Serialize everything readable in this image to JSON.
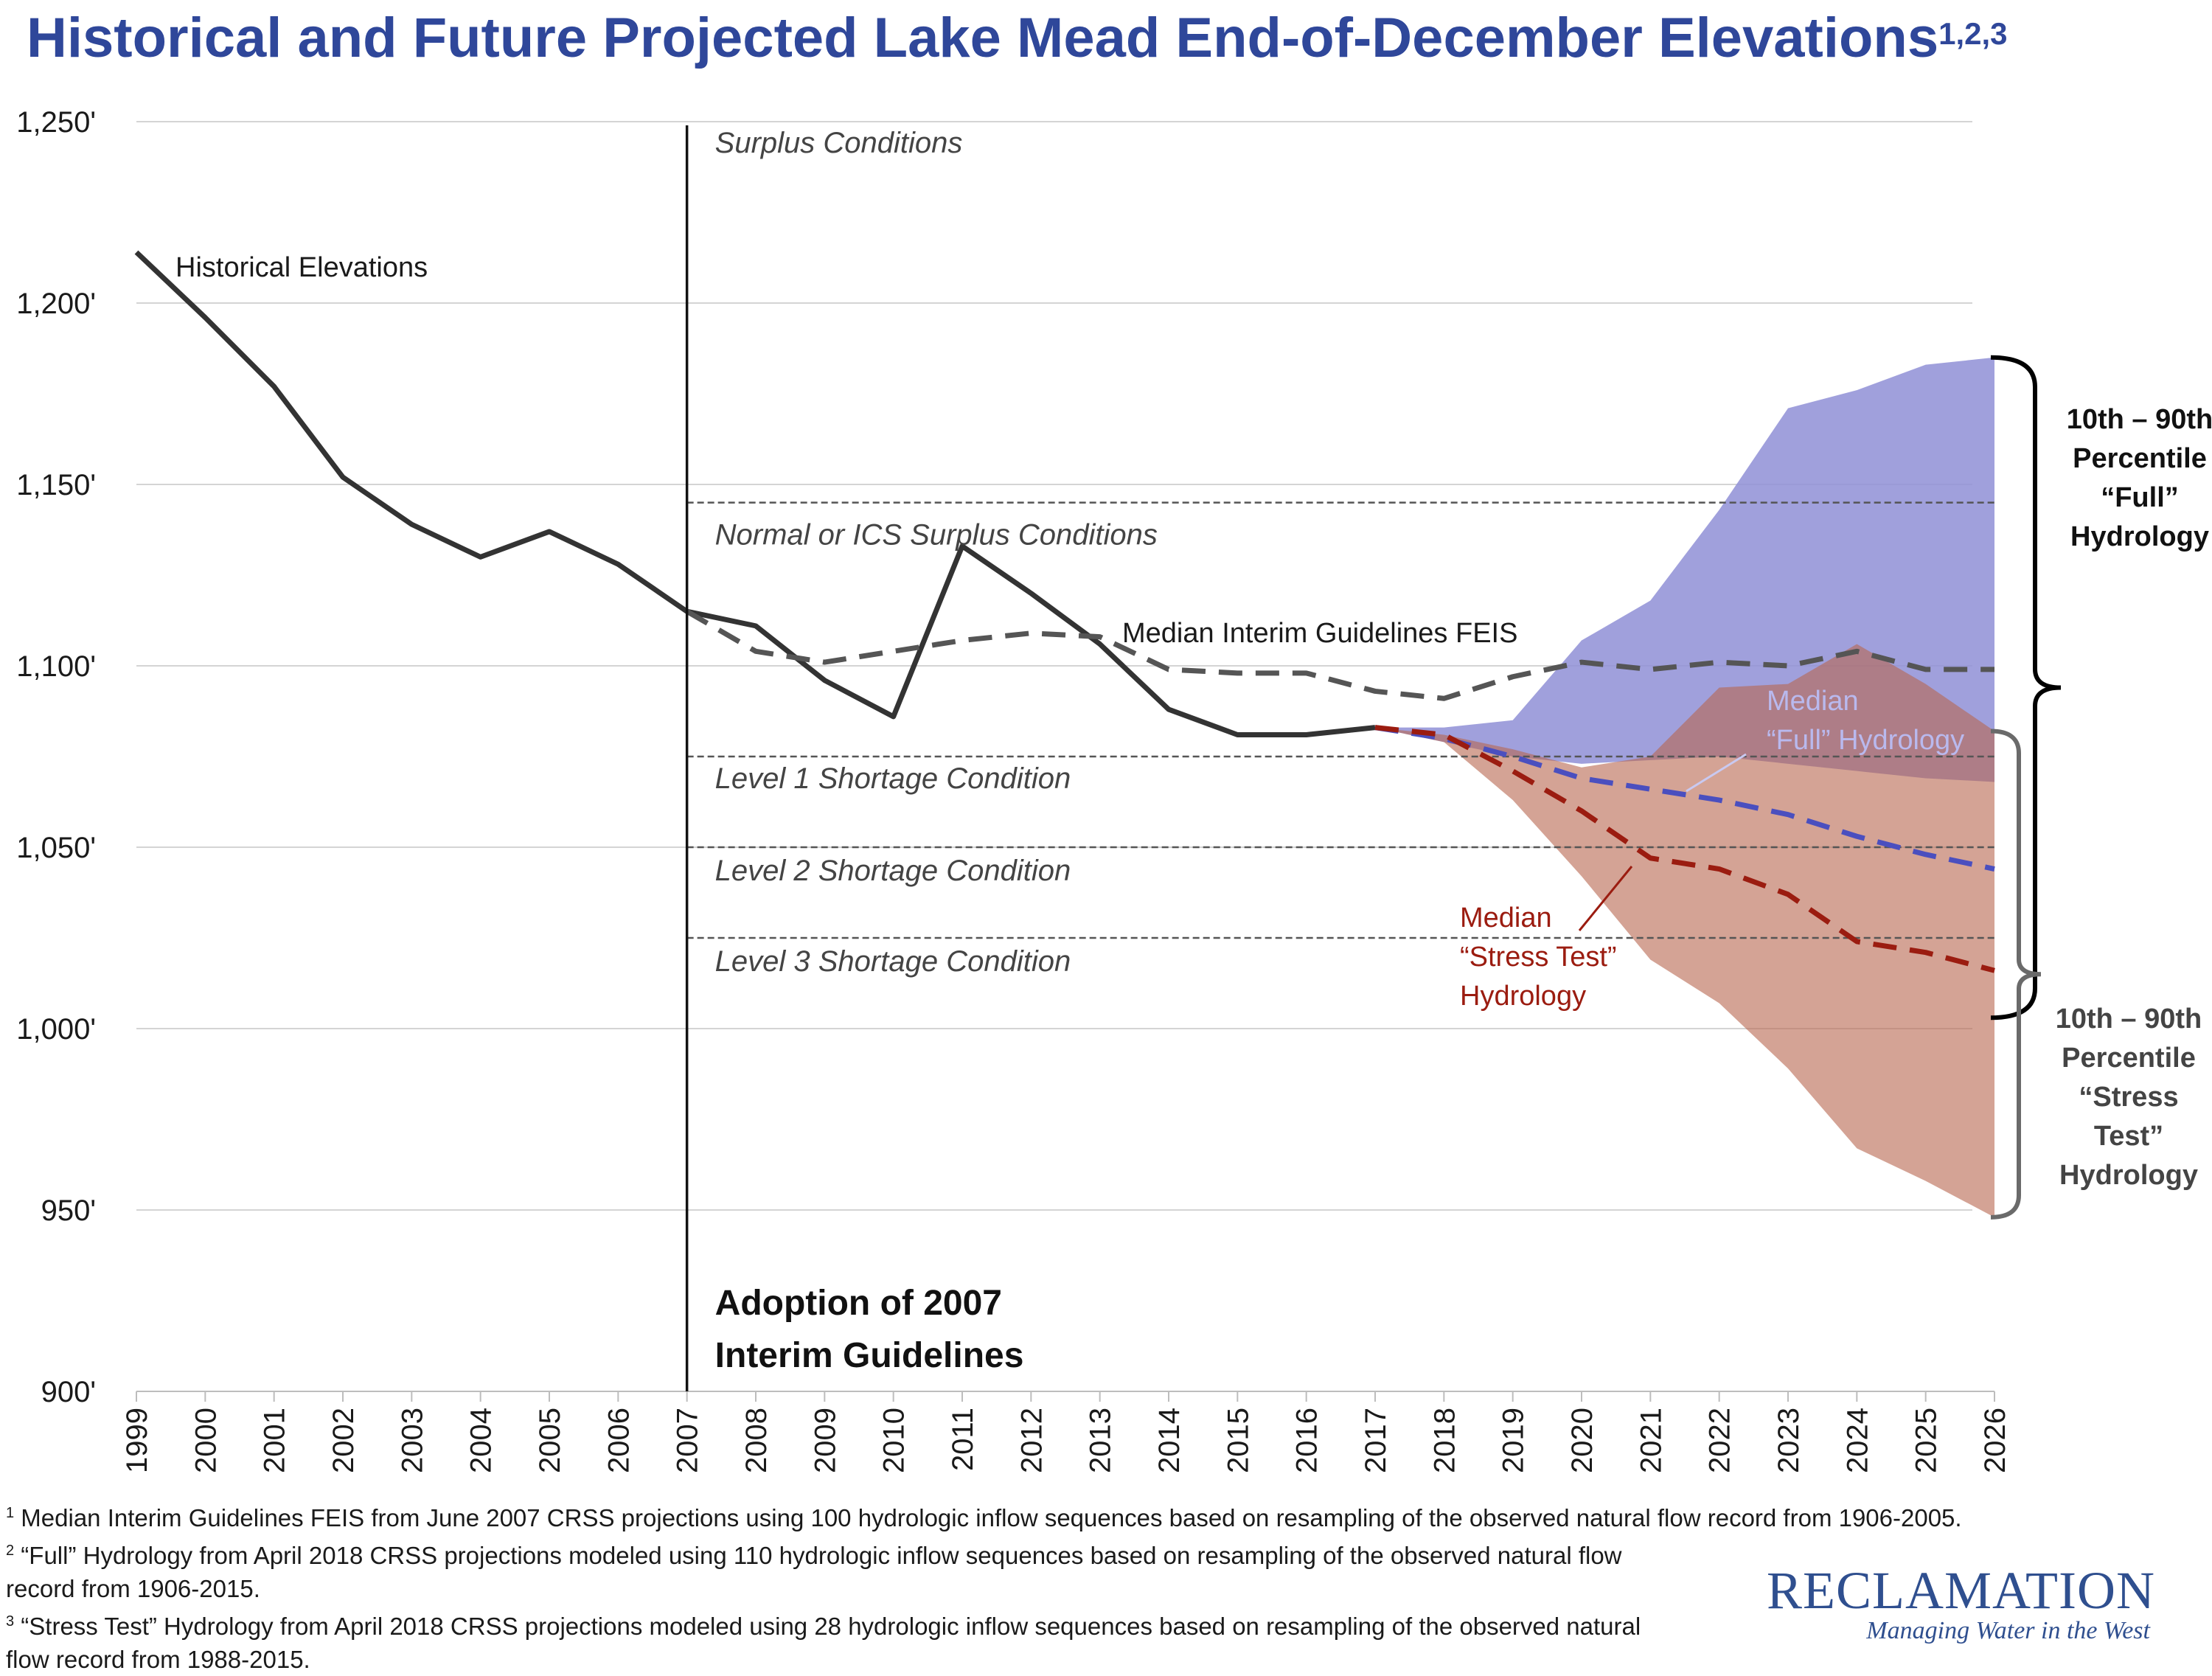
{
  "title": "Historical and Future Projected Lake Mead End-of-December Elevations",
  "title_superscript": "1,2,3",
  "chart_data": {
    "type": "line",
    "title": "Historical and Future Projected Lake Mead End-of-December Elevations",
    "xlabel": "",
    "ylabel": "",
    "xlim": [
      1999,
      2026
    ],
    "ylim": [
      900,
      1250
    ],
    "grid": true,
    "legend_placement": "",
    "y_ticks": [
      {
        "value": 900,
        "label": "900'"
      },
      {
        "value": 950,
        "label": "950'"
      },
      {
        "value": 1000,
        "label": "1,000'"
      },
      {
        "value": 1050,
        "label": "1,050'"
      },
      {
        "value": 1100,
        "label": "1,100'"
      },
      {
        "value": 1150,
        "label": "1,150'"
      },
      {
        "value": 1200,
        "label": "1,200'"
      },
      {
        "value": 1250,
        "label": "1,250'"
      }
    ],
    "x_ticks": [
      "1999",
      "2000",
      "2001",
      "2002",
      "2003",
      "2004",
      "2005",
      "2006",
      "2007",
      "2008",
      "2009",
      "2010",
      "2011",
      "2012",
      "2013",
      "2014",
      "2015",
      "2016",
      "2017",
      "2018",
      "2019",
      "2020",
      "2021",
      "2022",
      "2023",
      "2024",
      "2025",
      "2026"
    ],
    "series": [
      {
        "name": "Historical Elevations",
        "color": "#333333",
        "style": "solid",
        "x": [
          1999,
          2000,
          2001,
          2002,
          2003,
          2004,
          2005,
          2006,
          2007,
          2008,
          2009,
          2010,
          2011,
          2012,
          2013,
          2014,
          2015,
          2016,
          2017
        ],
        "y": [
          1214,
          1196,
          1177,
          1152,
          1139,
          1130,
          1137,
          1128,
          1115,
          1111,
          1096,
          1086,
          1133,
          1120,
          1106,
          1088,
          1081,
          1081,
          1083
        ]
      },
      {
        "name": "Median Interim Guidelines FEIS",
        "color": "#555555",
        "style": "dashed",
        "x": [
          2007,
          2008,
          2009,
          2010,
          2011,
          2012,
          2013,
          2014,
          2015,
          2016,
          2017,
          2018,
          2019,
          2020,
          2021,
          2022,
          2023,
          2024,
          2025,
          2026
        ],
        "y": [
          1115,
          1104,
          1101,
          1104,
          1107,
          1109,
          1108,
          1099,
          1098,
          1098,
          1093,
          1091,
          1097,
          1101,
          1099,
          1101,
          1100,
          1104,
          1099,
          1099
        ]
      },
      {
        "name": "Median “Full” Hydrology",
        "color": "#4a4fbf",
        "style": "dashed",
        "x": [
          2017,
          2018,
          2019,
          2020,
          2021,
          2022,
          2023,
          2024,
          2025,
          2026
        ],
        "y": [
          1083,
          1080,
          1075,
          1069,
          1066,
          1063,
          1059,
          1053,
          1048,
          1044
        ]
      },
      {
        "name": "Median “Stress Test” Hydrology",
        "color": "#9b1c10",
        "style": "dashed",
        "x": [
          2017,
          2018,
          2019,
          2020,
          2021,
          2022,
          2023,
          2024,
          2025,
          2026
        ],
        "y": [
          1083,
          1081,
          1071,
          1060,
          1047,
          1044,
          1037,
          1024,
          1021,
          1016
        ]
      }
    ],
    "bands": [
      {
        "name": "10th – 90th Percentile “Full” Hydrology",
        "color": "#8f8fd6",
        "opacity": 0.85,
        "x": [
          2017,
          2018,
          2019,
          2020,
          2021,
          2022,
          2023,
          2024,
          2025,
          2026
        ],
        "low": [
          1083,
          1079,
          1075,
          1073,
          1074,
          1075,
          1073,
          1071,
          1069,
          1068
        ],
        "high": [
          1083,
          1083,
          1085,
          1107,
          1118,
          1143,
          1171,
          1176,
          1183,
          1185
        ]
      },
      {
        "name": "10th – 90th Percentile “Stress Test” Hydrology",
        "color": "#b7654f",
        "opacity": 0.6,
        "x": [
          2017,
          2018,
          2019,
          2020,
          2021,
          2022,
          2023,
          2024,
          2025,
          2026
        ],
        "low": [
          1083,
          1079,
          1063,
          1042,
          1019,
          1007,
          989,
          967,
          958,
          948
        ],
        "high": [
          1083,
          1081,
          1077,
          1072,
          1075,
          1094,
          1095,
          1106,
          1095,
          1082
        ]
      }
    ],
    "reference_lines": [
      {
        "value": 1145,
        "label": "Normal or ICS Surplus Conditions"
      },
      {
        "value": 1075,
        "label": "Level 1 Shortage Condition"
      },
      {
        "value": 1050,
        "label": "Level 2 Shortage Condition"
      },
      {
        "value": 1025,
        "label": "Level 3 Shortage Condition"
      }
    ],
    "annotations": {
      "surplus": "Surplus Conditions",
      "adoption_line1": "Adoption of 2007",
      "adoption_line2": "Interim Guidelines",
      "adoption_year": 2007,
      "historical_label": "Historical Elevations",
      "feis_label": "Median Interim Guidelines FEIS",
      "full_median_line1": "Median",
      "full_median_line2": "“Full” Hydrology",
      "stress_median_line1": "Median",
      "stress_median_line2": "“Stress Test”",
      "stress_median_line3": "Hydrology",
      "bracket_full": [
        "10th – 90th",
        "Percentile",
        "“Full”",
        "Hydrology"
      ],
      "bracket_stress": [
        "10th – 90th",
        "Percentile",
        "“Stress",
        "Test”",
        "Hydrology"
      ]
    }
  },
  "footnotes": [
    {
      "num": "1",
      "lines": [
        "Median Interim Guidelines FEIS from June 2007 CRSS projections using 100 hydrologic inflow sequences based on resampling of the observed natural flow record from 1906-2005."
      ]
    },
    {
      "num": "2",
      "lines": [
        "“Full” Hydrology from April 2018 CRSS projections modeled using 110 hydrologic inflow sequences based on resampling of the observed natural flow",
        "record from 1906-2015."
      ]
    },
    {
      "num": "3",
      "lines": [
        "“Stress Test” Hydrology from April 2018 CRSS projections modeled using 28 hydrologic inflow sequences based on resampling of the observed natural",
        "flow record from 1988-2015."
      ]
    }
  ],
  "logo": {
    "name": "RECLAMATION",
    "tagline": "Managing Water in the West"
  }
}
